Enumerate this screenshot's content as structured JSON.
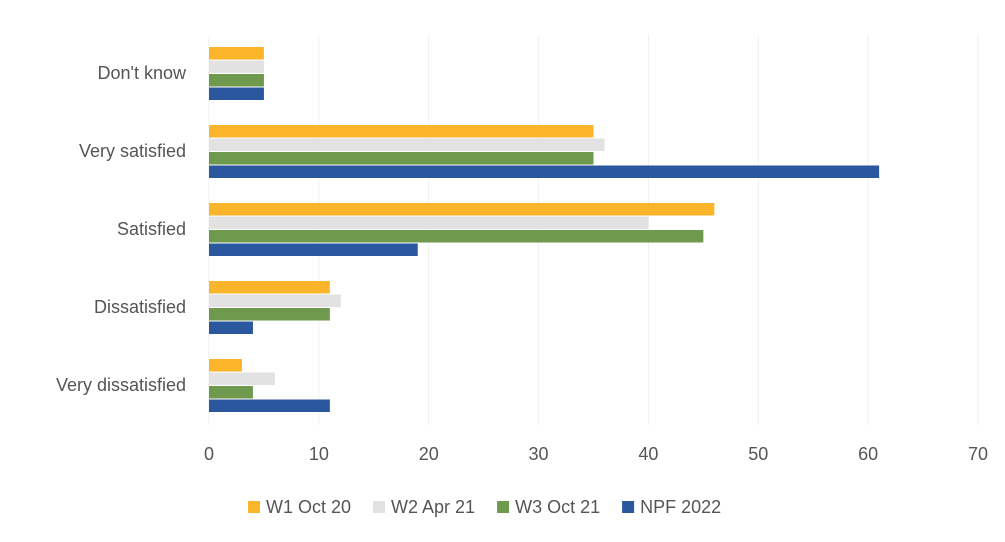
{
  "chart_data": {
    "type": "hbar",
    "categories": [
      "Don't know",
      "Very satisfied",
      "Satisfied",
      "Dissatisfied",
      "Very dissatisfied"
    ],
    "series": [
      {
        "name": "W1 Oct 20",
        "color": "#fbb52a",
        "values": [
          5,
          35,
          46,
          11,
          3
        ]
      },
      {
        "name": "W2 Apr 21",
        "color": "#e2e2e2",
        "values": [
          5,
          36,
          40,
          12,
          6
        ]
      },
      {
        "name": "W3 Oct 21",
        "color": "#6f9a4e",
        "values": [
          5,
          35,
          45,
          11,
          4
        ]
      },
      {
        "name": "NPF 2022",
        "color": "#2b579e",
        "values": [
          5,
          61,
          19,
          4,
          11
        ]
      }
    ],
    "xlim": [
      0,
      70
    ],
    "xticks": [
      0,
      10,
      20,
      30,
      40,
      50,
      60,
      70
    ],
    "grid": true,
    "legend": "bottom"
  }
}
